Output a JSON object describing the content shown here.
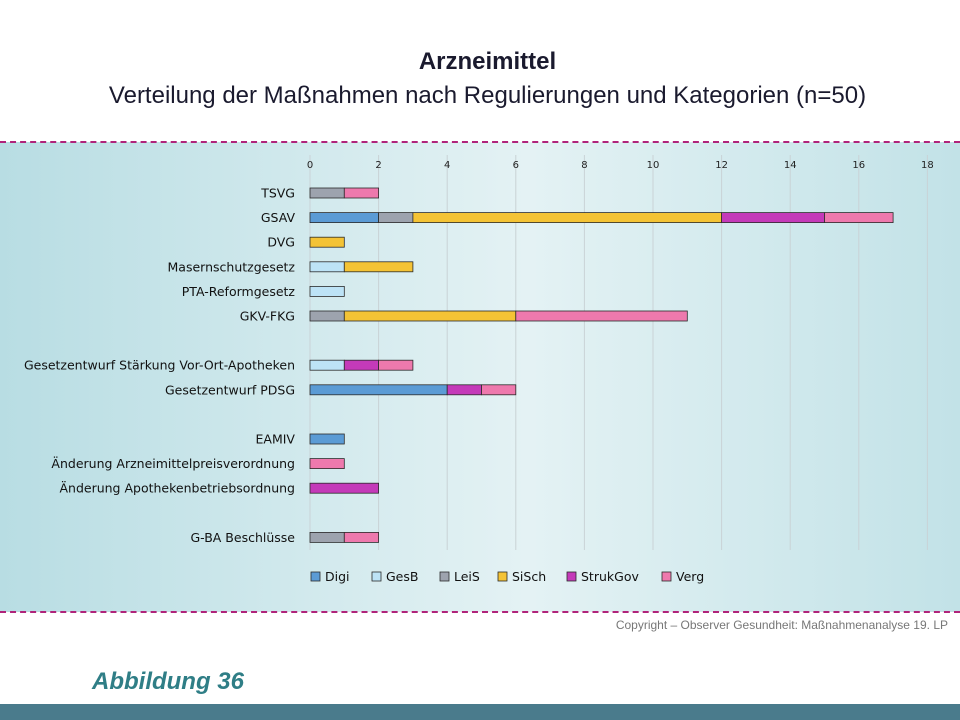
{
  "title": "Arzneimittel",
  "subtitle": "Verteilung der Maßnahmen nach Regulierungen und Kategorien (n=50)",
  "copyright": "Copyright – Observer Gesundheit: Maßnahmenanalyse 19. LP",
  "figure_label": "Abbildung 36",
  "chart_data": {
    "type": "bar",
    "orientation": "horizontal",
    "stacked": true,
    "xlim": [
      0,
      18
    ],
    "xticks": [
      0,
      2,
      4,
      6,
      8,
      10,
      12,
      14,
      16,
      18
    ],
    "grid": true,
    "legend_position": "bottom",
    "categories": [
      "TSVG",
      "GSAV",
      "DVG",
      "Masernschutzgesetz",
      "PTA-Reformgesetz",
      "GKV-FKG",
      "",
      "Gesetzentwurf Stärkung Vor-Ort-Apotheken",
      "Gesetzentwurf PDSG",
      "",
      "EAMIV",
      "Änderung Arzneimittelpreisverordnung",
      "Änderung Apothekenbetriebsordnung",
      "",
      "G-BA Beschlüsse"
    ],
    "series": [
      {
        "name": "Digi",
        "color": "#5b9bd5",
        "values": [
          0,
          2,
          0,
          0,
          0,
          0,
          0,
          0,
          4,
          0,
          1,
          0,
          0,
          0,
          0
        ]
      },
      {
        "name": "GesB",
        "color": "#bde3f6",
        "values": [
          0,
          0,
          0,
          1,
          1,
          0,
          0,
          1,
          0,
          0,
          0,
          0,
          0,
          0,
          0
        ]
      },
      {
        "name": "LeiS",
        "color": "#9da3ae",
        "values": [
          1,
          1,
          0,
          0,
          0,
          1,
          0,
          0,
          0,
          0,
          0,
          0,
          0,
          0,
          1
        ]
      },
      {
        "name": "SiSch",
        "color": "#f4c335",
        "values": [
          0,
          9,
          1,
          2,
          0,
          5,
          0,
          0,
          0,
          0,
          0,
          0,
          0,
          0,
          0
        ]
      },
      {
        "name": "StrukGov",
        "color": "#c43ab9",
        "values": [
          0,
          3,
          0,
          0,
          0,
          0,
          0,
          1,
          1,
          0,
          0,
          0,
          2,
          0,
          0
        ]
      },
      {
        "name": "Verg",
        "color": "#ee79ad",
        "values": [
          1,
          2,
          0,
          0,
          0,
          5,
          0,
          1,
          1,
          0,
          0,
          1,
          0,
          0,
          1
        ]
      }
    ]
  }
}
